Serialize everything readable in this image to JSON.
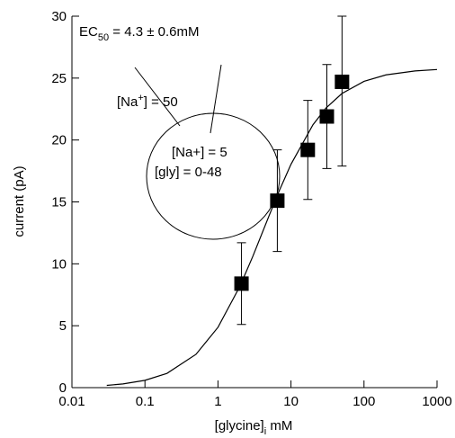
{
  "chart_data": {
    "type": "scatter",
    "y_label": "current (pA)",
    "x_label": [
      "[glycine]",
      "i",
      " mM"
    ],
    "annotations": {
      "ec50": [
        "EC",
        "50",
        " = 4.3 ± 0.6mM"
      ],
      "outside_na": [
        "[Na",
        "+",
        "] = 50"
      ],
      "inside_na": "[Na+] = 5",
      "inside_gly": "[gly] = 0-48"
    },
    "log_x": true,
    "xlim": [
      0.01,
      1000
    ],
    "xticks": [
      0.01,
      0.1,
      1,
      10,
      100,
      1000
    ],
    "ylim": [
      0,
      30
    ],
    "yticks": [
      0,
      5,
      10,
      15,
      20,
      25,
      30
    ],
    "color": "#000000",
    "points": {
      "x": [
        2.1,
        6.5,
        17,
        31,
        50
      ],
      "y": [
        8.4,
        15.1,
        19.2,
        21.9,
        24.7
      ],
      "error": [
        3.3,
        4.1,
        4.0,
        4.2,
        6.8
      ]
    },
    "curve": {
      "x": [
        0.03,
        0.05,
        0.1,
        0.2,
        0.5,
        1,
        2,
        3,
        5,
        7,
        10,
        20,
        30,
        50,
        100,
        200,
        500,
        1000
      ],
      "y": [
        0.18,
        0.3,
        0.59,
        1.15,
        2.69,
        4.87,
        8.19,
        10.6,
        13.87,
        15.98,
        18.04,
        21.23,
        22.57,
        23.76,
        24.74,
        25.26,
        25.58,
        25.69
      ]
    }
  }
}
